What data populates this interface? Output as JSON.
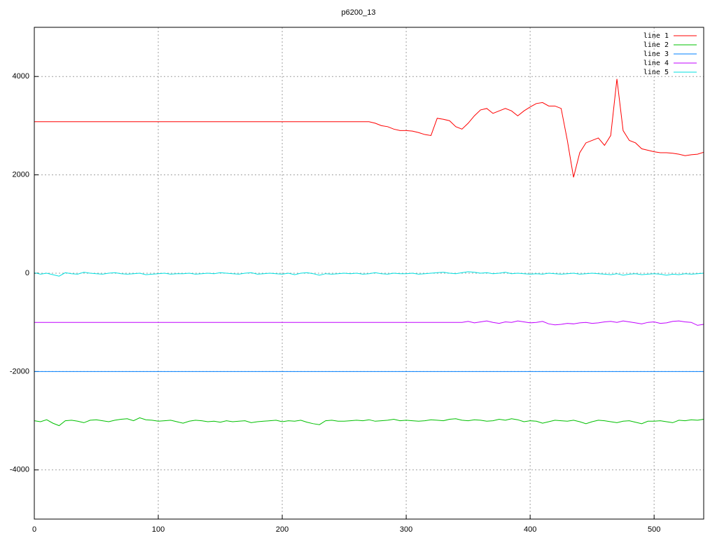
{
  "chart_data": {
    "type": "line",
    "title": "p6200_13",
    "x": [
      0,
      5,
      10,
      15,
      20,
      25,
      30,
      35,
      40,
      45,
      50,
      55,
      60,
      65,
      70,
      75,
      80,
      85,
      90,
      95,
      100,
      105,
      110,
      115,
      120,
      125,
      130,
      135,
      140,
      145,
      150,
      155,
      160,
      165,
      170,
      175,
      180,
      185,
      190,
      195,
      200,
      205,
      210,
      215,
      220,
      225,
      230,
      235,
      240,
      245,
      250,
      255,
      260,
      265,
      270,
      275,
      280,
      285,
      290,
      295,
      300,
      305,
      310,
      315,
      320,
      325,
      330,
      335,
      340,
      345,
      350,
      355,
      360,
      365,
      370,
      375,
      380,
      385,
      390,
      395,
      400,
      405,
      410,
      415,
      420,
      425,
      430,
      435,
      440,
      445,
      450,
      455,
      460,
      465,
      470,
      475,
      480,
      485,
      490,
      495,
      500,
      505,
      510,
      515,
      520,
      525,
      530,
      535,
      540
    ],
    "series": [
      {
        "name": "line 1",
        "color": "#ff0000",
        "values": [
          3080,
          3080,
          3080,
          3080,
          3080,
          3080,
          3080,
          3080,
          3080,
          3080,
          3080,
          3080,
          3080,
          3080,
          3080,
          3080,
          3080,
          3080,
          3080,
          3080,
          3080,
          3080,
          3080,
          3080,
          3080,
          3080,
          3080,
          3080,
          3080,
          3080,
          3080,
          3080,
          3080,
          3080,
          3080,
          3080,
          3080,
          3080,
          3080,
          3080,
          3080,
          3080,
          3080,
          3080,
          3080,
          3080,
          3080,
          3080,
          3080,
          3080,
          3080,
          3080,
          3080,
          3080,
          3080,
          3050,
          3000,
          2980,
          2930,
          2900,
          2900,
          2890,
          2860,
          2820,
          2800,
          3150,
          3130,
          3100,
          2980,
          2930,
          3050,
          3200,
          3320,
          3350,
          3250,
          3300,
          3350,
          3300,
          3200,
          3300,
          3380,
          3450,
          3470,
          3400,
          3400,
          3350,
          2700,
          1950,
          2450,
          2650,
          2700,
          2750,
          2600,
          2800,
          3950,
          2900,
          2700,
          2650,
          2530,
          2500,
          2470,
          2450,
          2450,
          2440,
          2420,
          2390,
          2410,
          2420,
          2460
        ]
      },
      {
        "name": "line 2",
        "color": "#00c000",
        "values": [
          -3000,
          -3020,
          -2980,
          -3050,
          -3100,
          -3000,
          -2990,
          -3010,
          -3040,
          -2990,
          -2980,
          -3000,
          -3020,
          -2990,
          -2970,
          -2960,
          -3000,
          -2940,
          -2980,
          -2990,
          -3010,
          -3000,
          -2990,
          -3020,
          -3050,
          -3010,
          -2990,
          -3000,
          -3020,
          -3010,
          -3030,
          -3000,
          -3020,
          -3010,
          -3000,
          -3040,
          -3020,
          -3010,
          -3000,
          -2990,
          -3020,
          -3000,
          -3010,
          -2990,
          -3030,
          -3060,
          -3080,
          -3000,
          -2990,
          -3010,
          -3010,
          -3000,
          -2990,
          -3000,
          -2980,
          -3010,
          -3000,
          -2990,
          -2970,
          -3000,
          -2990,
          -3000,
          -3010,
          -3000,
          -2980,
          -2990,
          -3000,
          -2970,
          -2960,
          -2990,
          -3000,
          -2980,
          -2990,
          -3010,
          -3000,
          -2970,
          -2990,
          -2960,
          -2980,
          -3020,
          -3000,
          -3010,
          -3050,
          -3020,
          -2990,
          -3000,
          -3010,
          -2990,
          -3020,
          -3060,
          -3020,
          -2990,
          -3000,
          -3020,
          -3040,
          -3010,
          -3000,
          -3030,
          -3060,
          -3010,
          -3010,
          -3000,
          -3020,
          -3040,
          -2990,
          -3000,
          -2980,
          -2990,
          -2970
        ]
      },
      {
        "name": "line 3",
        "color": "#0080ff",
        "values": [
          -2000,
          -2000,
          -2000,
          -2000,
          -2000,
          -2000,
          -2000,
          -2000,
          -2000,
          -2000,
          -2000,
          -2000,
          -2000,
          -2000,
          -2000,
          -2000,
          -2000,
          -2000,
          -2000,
          -2000,
          -2000,
          -2000,
          -2000,
          -2000,
          -2000,
          -2000,
          -2000,
          -2000,
          -2000,
          -2000,
          -2000,
          -2000,
          -2000,
          -2000,
          -2000,
          -2000,
          -2000,
          -2000,
          -2000,
          -2000,
          -2000,
          -2000,
          -2000,
          -2000,
          -2000,
          -2000,
          -2000,
          -2000,
          -2000,
          -2000,
          -2000,
          -2000,
          -2000,
          -2000,
          -2000,
          -2000,
          -2000,
          -2000,
          -2000,
          -2000,
          -2000,
          -2000,
          -2000,
          -2000,
          -2000,
          -2000,
          -2000,
          -2000,
          -2000,
          -2000,
          -2000,
          -2000,
          -2000,
          -2000,
          -2000,
          -2000,
          -2000,
          -2000,
          -2000,
          -2000,
          -2000,
          -2000,
          -2000,
          -2000,
          -2000,
          -2000,
          -2000,
          -2000,
          -2000,
          -2000,
          -2000,
          -2000,
          -2000,
          -2000,
          -2000,
          -2000,
          -2000,
          -2000,
          -2000,
          -2000,
          -2000,
          -2000,
          -2000,
          -2000,
          -2000,
          -2000,
          -2000,
          -2000,
          -2000
        ]
      },
      {
        "name": "line 4",
        "color": "#c000ff",
        "values": [
          -1000,
          -1000,
          -1000,
          -1000,
          -1000,
          -1000,
          -1000,
          -1000,
          -1000,
          -1000,
          -1000,
          -1000,
          -1000,
          -1000,
          -1000,
          -1000,
          -1000,
          -1000,
          -1000,
          -1000,
          -1000,
          -1000,
          -1000,
          -1000,
          -1000,
          -1000,
          -1000,
          -1000,
          -1000,
          -1000,
          -1000,
          -1000,
          -1000,
          -1000,
          -1000,
          -1000,
          -1000,
          -1000,
          -1000,
          -1000,
          -1000,
          -1000,
          -1000,
          -1000,
          -1000,
          -1000,
          -1000,
          -1000,
          -1000,
          -1000,
          -1000,
          -1000,
          -1000,
          -1000,
          -1000,
          -1000,
          -1000,
          -1000,
          -1000,
          -1000,
          -1000,
          -1000,
          -1000,
          -1000,
          -1000,
          -1000,
          -1000,
          -1000,
          -1000,
          -1000,
          -980,
          -1010,
          -990,
          -970,
          -1000,
          -1020,
          -990,
          -1000,
          -970,
          -990,
          -1010,
          -1000,
          -980,
          -1030,
          -1050,
          -1040,
          -1020,
          -1030,
          -1010,
          -1000,
          -1020,
          -1010,
          -990,
          -980,
          -1000,
          -970,
          -990,
          -1010,
          -1030,
          -1000,
          -990,
          -1020,
          -1010,
          -980,
          -970,
          -990,
          -1000,
          -1060,
          -1040
        ]
      },
      {
        "name": "line 5",
        "color": "#00e0e0",
        "values": [
          10,
          -20,
          0,
          -30,
          -60,
          10,
          -10,
          -20,
          20,
          0,
          -10,
          -20,
          0,
          10,
          -10,
          -20,
          -10,
          0,
          -30,
          -20,
          -10,
          0,
          -20,
          -10,
          -10,
          0,
          -20,
          -10,
          0,
          -10,
          10,
          0,
          -10,
          -20,
          0,
          10,
          -20,
          -10,
          0,
          -10,
          -20,
          0,
          -30,
          0,
          10,
          -10,
          -40,
          -10,
          -20,
          -10,
          0,
          -10,
          0,
          -20,
          -10,
          10,
          -10,
          -20,
          0,
          -10,
          -10,
          0,
          -20,
          -10,
          0,
          10,
          20,
          0,
          -10,
          10,
          30,
          20,
          0,
          10,
          -10,
          0,
          20,
          -10,
          0,
          -10,
          -20,
          -10,
          -20,
          0,
          -10,
          -20,
          -10,
          0,
          -20,
          -10,
          0,
          -10,
          -20,
          -30,
          -10,
          -40,
          -20,
          -10,
          -30,
          -20,
          -10,
          -20,
          -40,
          -20,
          -30,
          -10,
          -20,
          -10,
          0
        ]
      }
    ],
    "xlim": [
      0,
      540
    ],
    "ylim": [
      -5000,
      5000
    ],
    "xticks": [
      0,
      100,
      200,
      300,
      400,
      500
    ],
    "yticks": [
      -4000,
      -2000,
      0,
      2000,
      4000
    ],
    "grid": true,
    "legend": "top-right"
  }
}
